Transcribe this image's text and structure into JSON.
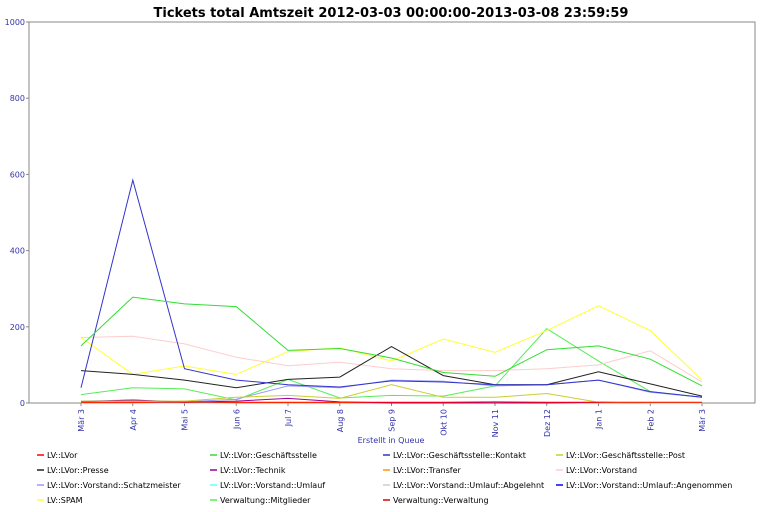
{
  "chart_data": {
    "type": "line",
    "title": "Tickets total Amtszeit 2012-03-03 00:00:00-2013-03-08 23:59:59",
    "xlabel": "Erstellt in Queue",
    "ylabel": "",
    "ylim": [
      0,
      1000
    ],
    "yticks": [
      "0",
      "200",
      "400",
      "600",
      "800",
      "1000"
    ],
    "categories": [
      "Mär 3",
      "Apr 4",
      "Mai 5",
      "Jun 6",
      "Jul 7",
      "Aug 8",
      "Sep 9",
      "Okt 10",
      "Nov 11",
      "Dez 12",
      "Jan 1",
      "Feb 2",
      "Mär 3"
    ],
    "grid": false,
    "legend_position": "bottom",
    "series": [
      {
        "name": "LV::LVor",
        "color": "#ff0000",
        "values": [
          2,
          2,
          2,
          2,
          2,
          2,
          2,
          2,
          3,
          2,
          2,
          2,
          2
        ]
      },
      {
        "name": "LV::LVor::Geschäftsstelle",
        "color": "#33dd33",
        "values": [
          150,
          278,
          260,
          253,
          138,
          143,
          118,
          80,
          70,
          140,
          150,
          115,
          45
        ]
      },
      {
        "name": "LV::LVor::Geschäftsstelle::Kontakt",
        "color": "#3333cc",
        "values": [
          40,
          585,
          90,
          60,
          48,
          42,
          58,
          55,
          48,
          48,
          60,
          30,
          15
        ]
      },
      {
        "name": "LV::LVor::Geschäftsstelle::Post",
        "color": "#cccc33",
        "values": [
          5,
          5,
          5,
          15,
          20,
          12,
          48,
          15,
          15,
          25,
          2,
          0,
          0
        ]
      },
      {
        "name": "LV::LVor::Presse",
        "color": "#222222",
        "values": [
          85,
          75,
          60,
          40,
          62,
          68,
          148,
          72,
          48,
          48,
          82,
          50,
          18
        ]
      },
      {
        "name": "LV::LVor::Technik",
        "color": "#990099",
        "values": [
          3,
          8,
          2,
          5,
          12,
          3,
          0,
          0,
          0,
          0,
          2,
          0,
          0
        ]
      },
      {
        "name": "LV::LVor::Transfer",
        "color": "#ff9900",
        "values": [
          0,
          0,
          5,
          0,
          0,
          0,
          0,
          0,
          0,
          0,
          0,
          0,
          0
        ]
      },
      {
        "name": "LV::LVor::Vorstand",
        "color": "#ffcccc",
        "values": [
          172,
          175,
          155,
          120,
          98,
          107,
          90,
          85,
          85,
          90,
          100,
          137,
          55
        ]
      },
      {
        "name": "LV::LVor::Vorstand::Schatzmeister",
        "color": "#9999ff",
        "values": [
          5,
          8,
          3,
          10,
          45,
          40,
          60,
          57,
          45,
          48,
          60,
          28,
          15
        ]
      },
      {
        "name": "LV::LVor::Vorstand::Umlauf",
        "color": "#66ffff",
        "values": [
          0,
          0,
          2,
          0,
          0,
          0,
          0,
          0,
          0,
          0,
          0,
          0,
          0
        ]
      },
      {
        "name": "LV::LVor::Vorstand::Umlauf::Abgelehnt",
        "color": "#cccccc",
        "values": [
          0,
          0,
          0,
          0,
          0,
          0,
          0,
          0,
          0,
          0,
          0,
          0,
          0
        ]
      },
      {
        "name": "LV::LVor::Vorstand::Umlauf::Angenommen",
        "color": "#0000ff",
        "values": [
          0,
          0,
          0,
          0,
          0,
          0,
          0,
          0,
          0,
          0,
          0,
          0,
          0
        ]
      },
      {
        "name": "LV::SPAM",
        "color": "#ffff33",
        "values": [
          172,
          75,
          97,
          75,
          135,
          145,
          110,
          168,
          133,
          190,
          255,
          190,
          60
        ]
      },
      {
        "name": "Verwaltung::Mitglieder",
        "color": "#55ee55",
        "values": [
          22,
          40,
          37,
          8,
          62,
          13,
          20,
          18,
          45,
          195,
          110,
          30,
          15
        ]
      },
      {
        "name": "Verwaltung::Verwaltung",
        "color": "#dd0000",
        "values": [
          0,
          0,
          0,
          0,
          0,
          0,
          0,
          0,
          0,
          0,
          0,
          0,
          0
        ]
      }
    ]
  }
}
